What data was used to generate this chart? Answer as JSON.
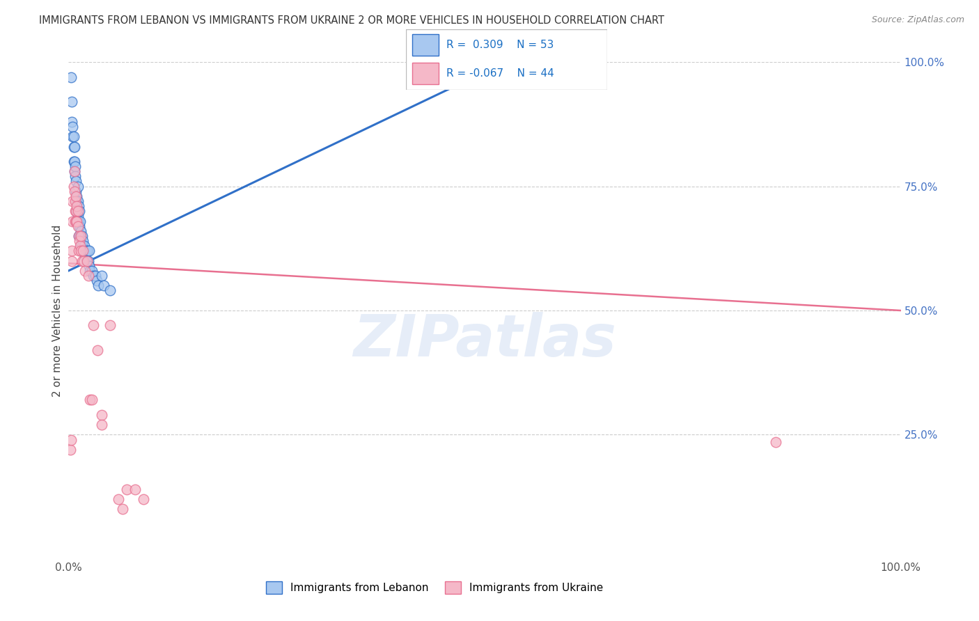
{
  "title": "IMMIGRANTS FROM LEBANON VS IMMIGRANTS FROM UKRAINE 2 OR MORE VEHICLES IN HOUSEHOLD CORRELATION CHART",
  "source": "Source: ZipAtlas.com",
  "ylabel": "2 or more Vehicles in Household",
  "xlim": [
    0,
    1.0
  ],
  "ylim": [
    0,
    1.0
  ],
  "xtick_labels": [
    "0.0%",
    "100.0%"
  ],
  "right_ytick_labels": [
    "25.0%",
    "50.0%",
    "75.0%",
    "100.0%"
  ],
  "right_ytick_vals": [
    0.25,
    0.5,
    0.75,
    1.0
  ],
  "legend_label1": "Immigrants from Lebanon",
  "legend_label2": "Immigrants from Ukraine",
  "R_lebanon": 0.309,
  "N_lebanon": 53,
  "R_ukraine": -0.067,
  "N_ukraine": 44,
  "color_lebanon": "#A8C8F0",
  "color_ukraine": "#F5B8C8",
  "line_color_lebanon": "#3070C8",
  "line_color_ukraine": "#E87090",
  "watermark": "ZIPatlas",
  "leb_line_x0": 0.0,
  "leb_line_y0": 0.58,
  "leb_line_x1": 0.55,
  "leb_line_y1": 1.02,
  "ukr_line_x0": 0.0,
  "ukr_line_y0": 0.595,
  "ukr_line_x1": 1.0,
  "ukr_line_y1": 0.5,
  "lebanon_pts": [
    [
      0.003,
      0.97
    ],
    [
      0.004,
      0.92
    ],
    [
      0.004,
      0.88
    ],
    [
      0.005,
      0.87
    ],
    [
      0.005,
      0.85
    ],
    [
      0.006,
      0.85
    ],
    [
      0.006,
      0.83
    ],
    [
      0.006,
      0.8
    ],
    [
      0.007,
      0.83
    ],
    [
      0.007,
      0.8
    ],
    [
      0.007,
      0.78
    ],
    [
      0.008,
      0.79
    ],
    [
      0.008,
      0.77
    ],
    [
      0.009,
      0.76
    ],
    [
      0.009,
      0.74
    ],
    [
      0.01,
      0.73
    ],
    [
      0.01,
      0.72
    ],
    [
      0.01,
      0.7
    ],
    [
      0.01,
      0.68
    ],
    [
      0.011,
      0.75
    ],
    [
      0.011,
      0.72
    ],
    [
      0.011,
      0.69
    ],
    [
      0.012,
      0.71
    ],
    [
      0.012,
      0.68
    ],
    [
      0.012,
      0.65
    ],
    [
      0.013,
      0.7
    ],
    [
      0.013,
      0.67
    ],
    [
      0.013,
      0.65
    ],
    [
      0.014,
      0.68
    ],
    [
      0.014,
      0.65
    ],
    [
      0.015,
      0.66
    ],
    [
      0.015,
      0.63
    ],
    [
      0.016,
      0.65
    ],
    [
      0.016,
      0.63
    ],
    [
      0.017,
      0.64
    ],
    [
      0.018,
      0.62
    ],
    [
      0.019,
      0.63
    ],
    [
      0.02,
      0.61
    ],
    [
      0.021,
      0.62
    ],
    [
      0.022,
      0.6
    ],
    [
      0.023,
      0.62
    ],
    [
      0.024,
      0.6
    ],
    [
      0.025,
      0.62
    ],
    [
      0.025,
      0.59
    ],
    [
      0.026,
      0.58
    ],
    [
      0.028,
      0.58
    ],
    [
      0.03,
      0.57
    ],
    [
      0.032,
      0.57
    ],
    [
      0.034,
      0.56
    ],
    [
      0.036,
      0.55
    ],
    [
      0.04,
      0.57
    ],
    [
      0.042,
      0.55
    ],
    [
      0.05,
      0.54
    ]
  ],
  "ukraine_pts": [
    [
      0.002,
      0.22
    ],
    [
      0.003,
      0.24
    ],
    [
      0.004,
      0.62
    ],
    [
      0.004,
      0.6
    ],
    [
      0.005,
      0.72
    ],
    [
      0.005,
      0.68
    ],
    [
      0.006,
      0.75
    ],
    [
      0.007,
      0.78
    ],
    [
      0.007,
      0.74
    ],
    [
      0.008,
      0.72
    ],
    [
      0.008,
      0.7
    ],
    [
      0.008,
      0.68
    ],
    [
      0.009,
      0.73
    ],
    [
      0.009,
      0.7
    ],
    [
      0.009,
      0.68
    ],
    [
      0.01,
      0.71
    ],
    [
      0.01,
      0.68
    ],
    [
      0.011,
      0.7
    ],
    [
      0.011,
      0.67
    ],
    [
      0.012,
      0.65
    ],
    [
      0.012,
      0.62
    ],
    [
      0.013,
      0.64
    ],
    [
      0.014,
      0.63
    ],
    [
      0.015,
      0.65
    ],
    [
      0.015,
      0.62
    ],
    [
      0.016,
      0.6
    ],
    [
      0.017,
      0.62
    ],
    [
      0.018,
      0.6
    ],
    [
      0.02,
      0.58
    ],
    [
      0.022,
      0.6
    ],
    [
      0.024,
      0.57
    ],
    [
      0.026,
      0.32
    ],
    [
      0.028,
      0.32
    ],
    [
      0.03,
      0.47
    ],
    [
      0.035,
      0.42
    ],
    [
      0.04,
      0.29
    ],
    [
      0.04,
      0.27
    ],
    [
      0.05,
      0.47
    ],
    [
      0.06,
      0.12
    ],
    [
      0.065,
      0.1
    ],
    [
      0.07,
      0.14
    ],
    [
      0.08,
      0.14
    ],
    [
      0.09,
      0.12
    ],
    [
      0.85,
      0.235
    ]
  ]
}
